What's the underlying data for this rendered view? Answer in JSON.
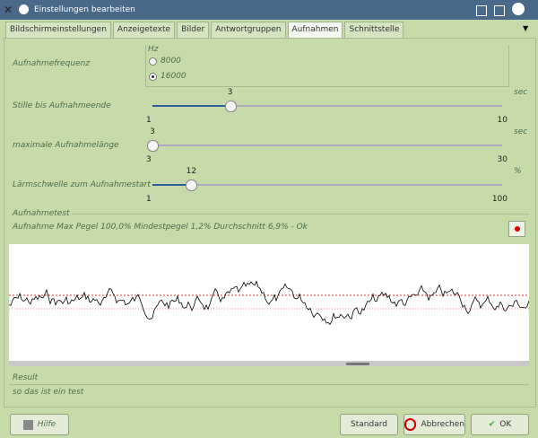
{
  "window": {
    "title": "Einstellungen bearbeiten"
  },
  "tabs": [
    "Bildschirmeinstellungen",
    "Anzeigetexte",
    "Bilder",
    "Antwortgruppen",
    "Aufnahmen",
    "Schnittstelle"
  ],
  "active_tab": 4,
  "frequency": {
    "label": "Aufnahmefrequenz",
    "unit": "Hz",
    "options": [
      "8000",
      "16000"
    ],
    "selected": 1
  },
  "sliders": [
    {
      "label": "Stille bis Aufnahmeende",
      "value": 3,
      "min": 1,
      "max": 10,
      "unit": "sec"
    },
    {
      "label": "maximale Aufnahmelänge",
      "value": 3,
      "min": 3,
      "max": 30,
      "unit": "sec"
    },
    {
      "label": "Lärmschwelle zum Aufnahmestart",
      "value": 12,
      "min": 1,
      "max": 100,
      "unit": "%"
    }
  ],
  "test": {
    "title": "Aufnahmetest",
    "status": "Aufnahme Max Pegel 100,0% Mindestpegel 1,2% Durchschnitt 6,9% - Ok"
  },
  "result": {
    "title": "Result",
    "text": "so das ist ein test"
  },
  "buttons": {
    "help": "Hilfe",
    "default": "Standard",
    "cancel": "Abbrechen",
    "ok": "OK"
  }
}
